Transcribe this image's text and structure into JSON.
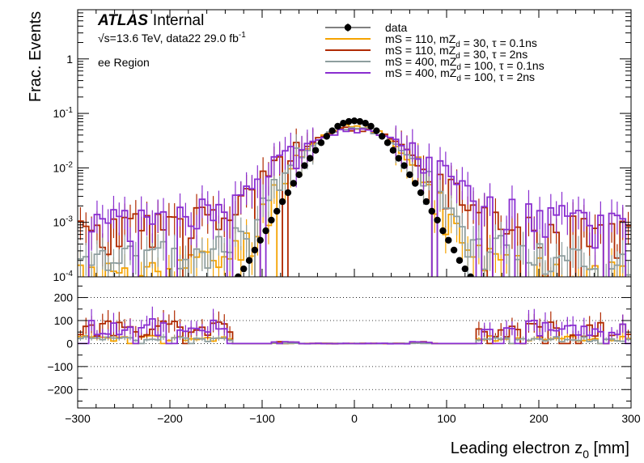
{
  "header": {
    "experiment": "ATLAS",
    "status": "Internal",
    "energy_line": "√s=13.6 TeV, data22 29.0 fb",
    "lumi_exponent": "-1",
    "region": "ee Region"
  },
  "colors": {
    "data": "#000000",
    "s1": "#f5a300",
    "s2": "#b02a00",
    "s3": "#8e9e9e",
    "s4": "#8a2ed0"
  },
  "chart_data": [
    {
      "type": "line",
      "panel": "top",
      "xlabel": "Leading electron z",
      "xlabel_sub": "0",
      "xlabel_unit": " [mm]",
      "ylabel": "Frac. Events",
      "xlim": [
        -300,
        300
      ],
      "ylim": [
        0.0001,
        8
      ],
      "yscale": "log",
      "x_ticks": [
        -300,
        -200,
        -100,
        0,
        100,
        200,
        300
      ],
      "y_ticks": [
        {
          "value": 0.0001,
          "base": "10",
          "exp": "-4"
        },
        {
          "value": 0.001,
          "base": "10",
          "exp": "-3"
        },
        {
          "value": 0.01,
          "base": "10",
          "exp": "-2"
        },
        {
          "value": 0.1,
          "base": "10",
          "exp": "-1"
        },
        {
          "value": 1,
          "base": "1",
          "exp": ""
        }
      ],
      "legend": [
        {
          "key": "data",
          "parts": [
            {
              "t": "data"
            }
          ]
        },
        {
          "key": "s1",
          "parts": [
            {
              "t": "mS = 110, mZ"
            },
            {
              "t": "d",
              "sub": true
            },
            {
              "t": " = 30, τ = 0.1ns"
            }
          ]
        },
        {
          "key": "s2",
          "parts": [
            {
              "t": "mS = 110, mZ"
            },
            {
              "t": "d",
              "sub": true
            },
            {
              "t": " = 30, τ = 2ns"
            }
          ]
        },
        {
          "key": "s3",
          "parts": [
            {
              "t": "mS = 400, mZ"
            },
            {
              "t": "d",
              "sub": true
            },
            {
              "t": " = 100, τ = 0.1ns"
            }
          ]
        },
        {
          "key": "s4",
          "parts": [
            {
              "t": "mS = 400, mZ"
            },
            {
              "t": "d",
              "sub": true
            },
            {
              "t": " = 100, τ = 2ns"
            }
          ]
        }
      ],
      "legend_position": "top-right",
      "series": [
        {
          "key": "data",
          "kind": "points",
          "x": [
            -126,
            -120,
            -114,
            -108,
            -102,
            -96,
            -90,
            -84,
            -78,
            -72,
            -66,
            -60,
            -54,
            -48,
            -42,
            -36,
            -30,
            -24,
            -18,
            -12,
            -6,
            0,
            6,
            12,
            18,
            24,
            30,
            36,
            42,
            48,
            54,
            60,
            66,
            72,
            78,
            84,
            90,
            96,
            102,
            108,
            114,
            120,
            126
          ],
          "values": [
            0.0001,
            0.00014,
            0.0002,
            0.00031,
            0.00047,
            0.0007,
            0.0011,
            0.0016,
            0.0024,
            0.0035,
            0.0052,
            0.0075,
            0.011,
            0.015,
            0.021,
            0.029,
            0.038,
            0.048,
            0.058,
            0.066,
            0.071,
            0.073,
            0.071,
            0.066,
            0.058,
            0.048,
            0.038,
            0.029,
            0.021,
            0.015,
            0.011,
            0.0075,
            0.0052,
            0.0035,
            0.0024,
            0.0016,
            0.0011,
            0.0007,
            0.00047,
            0.00031,
            0.0002,
            0.00014,
            0.0001
          ]
        },
        {
          "key": "s1",
          "kind": "hist",
          "sigma": 35,
          "peak": 0.058,
          "floor": 0.00035,
          "seed": 11
        },
        {
          "key": "s2",
          "kind": "hist",
          "sigma": 42,
          "peak": 0.05,
          "floor": 0.0022,
          "seed": 23
        },
        {
          "key": "s3",
          "kind": "hist",
          "sigma": 36,
          "peak": 0.055,
          "floor": 0.0006,
          "seed": 37
        },
        {
          "key": "s4",
          "kind": "hist",
          "sigma": 45,
          "peak": 0.046,
          "floor": 0.003,
          "seed": 51
        }
      ]
    },
    {
      "type": "line",
      "panel": "ratio",
      "xlim": [
        -300,
        300
      ],
      "ylim": [
        -280,
        290
      ],
      "y_ticks": [
        -200,
        -100,
        0,
        100,
        200
      ],
      "y_tick_labels": [
        "−200",
        "−100",
        "0",
        "100",
        "200"
      ],
      "x_ticks": [
        -300,
        -200,
        -100,
        0,
        100,
        200,
        300
      ],
      "x_tick_labels": [
        "−300",
        "−200",
        "−100",
        "0",
        "100",
        "200",
        "300"
      ],
      "gridlines_y": [
        -200,
        -100,
        0,
        100,
        200
      ],
      "series": [
        {
          "key": "s1",
          "scale": 0.35
        },
        {
          "key": "s2",
          "scale": 1.0
        },
        {
          "key": "s3",
          "scale": 0.3
        },
        {
          "key": "s4",
          "scale": 1.1
        }
      ]
    }
  ]
}
